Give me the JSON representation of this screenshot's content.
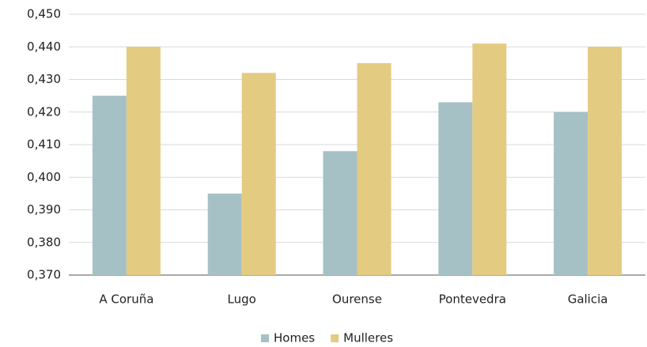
{
  "chart_data": {
    "type": "bar",
    "categories": [
      "A Coruña",
      "Lugo",
      "Ourense",
      "Pontevedra",
      "Galicia"
    ],
    "series": [
      {
        "name": "Homes",
        "color": "#a6c1c5",
        "values": [
          0.425,
          0.395,
          0.408,
          0.423,
          0.42
        ]
      },
      {
        "name": "Mulleres",
        "color": "#e3cb82",
        "values": [
          0.44,
          0.432,
          0.435,
          0.441,
          0.44
        ]
      }
    ],
    "ylim": [
      0.37,
      0.45
    ],
    "yticks": [
      {
        "value": 0.37,
        "label": "0,370"
      },
      {
        "value": 0.38,
        "label": "0,380"
      },
      {
        "value": 0.39,
        "label": "0,390"
      },
      {
        "value": 0.4,
        "label": "0,400"
      },
      {
        "value": 0.41,
        "label": "0,410"
      },
      {
        "value": 0.42,
        "label": "0,420"
      },
      {
        "value": 0.43,
        "label": "0,430"
      },
      {
        "value": 0.44,
        "label": "0,440"
      },
      {
        "value": 0.45,
        "label": "0,450"
      }
    ],
    "grid": true,
    "legend": "bottom"
  }
}
